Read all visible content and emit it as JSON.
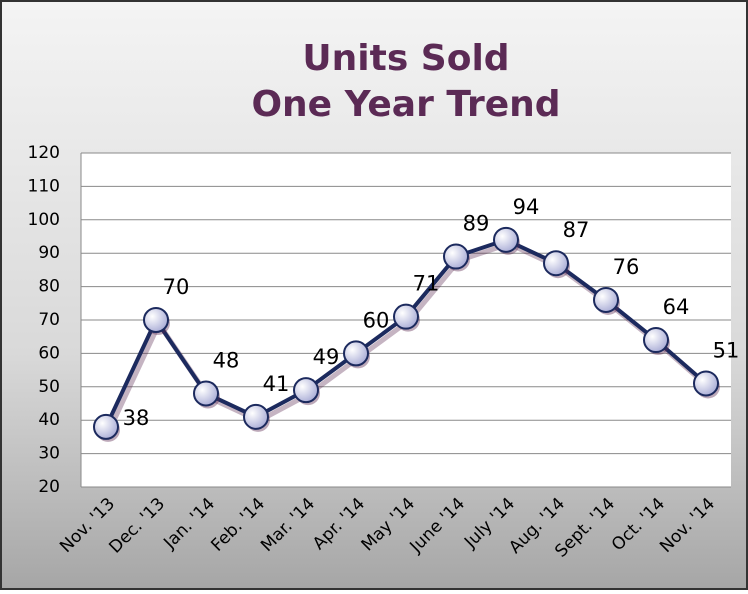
{
  "chart_data": {
    "type": "line",
    "title": [
      "Units Sold",
      "One Year Trend"
    ],
    "categories": [
      "Nov. '13",
      "Dec. '13",
      "Jan. '14",
      "Feb. '14",
      "Mar. '14",
      "Apr. '14",
      "May '14",
      "June '14",
      "July '14",
      "Aug. '14",
      "Sept. '14",
      "Oct. '14",
      "Nov. '14"
    ],
    "series": [
      {
        "name": "Units Sold",
        "color": "#1c2a5e",
        "values": [
          38,
          70,
          48,
          41,
          49,
          60,
          71,
          89,
          94,
          87,
          76,
          64,
          51
        ]
      }
    ],
    "ylim": [
      20,
      120
    ],
    "yticks": [
      20,
      30,
      40,
      50,
      60,
      70,
      80,
      90,
      100,
      110,
      120
    ],
    "grid": true
  }
}
